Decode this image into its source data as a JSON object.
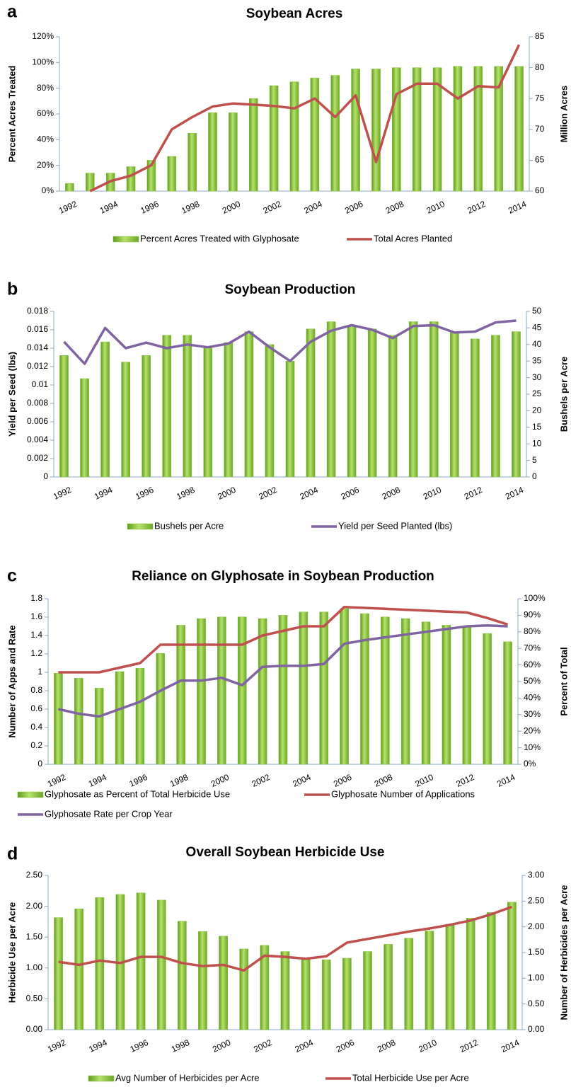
{
  "chart_data": [
    {
      "type": "combo",
      "label": "a",
      "title": "Soybean Acres",
      "ylabel": "Percent Acres Treated",
      "y2label": "Million Acres",
      "categories": [
        "1992",
        null,
        "1994",
        null,
        "1996",
        null,
        "1998",
        null,
        "2000",
        null,
        "2002",
        null,
        "2004",
        null,
        "2006",
        null,
        "2008",
        null,
        "2010",
        null,
        "2012",
        null,
        "2014"
      ],
      "ylim": [
        0,
        120
      ],
      "yticks": [
        {
          "value": 0,
          "label": "0%"
        },
        {
          "value": 20,
          "label": "20%"
        },
        {
          "value": 40,
          "label": "40%"
        },
        {
          "value": 60,
          "label": "60%"
        },
        {
          "value": 80,
          "label": "80%"
        },
        {
          "value": 100,
          "label": "100%"
        },
        {
          "value": 120,
          "label": "120%"
        }
      ],
      "y2lim": [
        60,
        85
      ],
      "y2ticks": [
        60,
        65,
        70,
        75,
        80,
        85
      ],
      "series": [
        {
          "name": "Percent Acres Treated with Glyphosate",
          "type": "bar",
          "color": "#8dc63f",
          "values": [
            6,
            14,
            14,
            19,
            24,
            27,
            45,
            61,
            61,
            72,
            82,
            85,
            88,
            90,
            95,
            95,
            96,
            96,
            96,
            97,
            97,
            97,
            97
          ]
        },
        {
          "name": "Total Acres Planted",
          "type": "line",
          "axis": "y2",
          "color": "#c0504d",
          "values": [
            null,
            60,
            61.6,
            62.5,
            64.2,
            70,
            72,
            73.7,
            74.2,
            74,
            73.8,
            73.4,
            75,
            72,
            75.5,
            64.7,
            75.7,
            77.4,
            77.4,
            75,
            77,
            76.8,
            83.7
          ]
        }
      ]
    },
    {
      "type": "combo",
      "label": "b",
      "title": "Soybean Production",
      "ylabel": "Yield per Seed (lbs)",
      "y2label": "Bushels per Acre",
      "categories": [
        "1992",
        null,
        "1994",
        null,
        "1996",
        null,
        "1998",
        null,
        "2000",
        null,
        "2002",
        null,
        "2004",
        null,
        "2006",
        null,
        "2008",
        null,
        "2010",
        null,
        "2012",
        null,
        "2014"
      ],
      "ylim": [
        0,
        0.018
      ],
      "yticks": [
        0,
        0.002,
        0.004,
        0.006,
        0.008,
        0.01,
        0.012,
        0.014,
        0.016,
        0.018
      ],
      "y2lim": [
        0,
        50
      ],
      "y2ticks": [
        0,
        5,
        10,
        15,
        20,
        25,
        30,
        35,
        40,
        45,
        50
      ],
      "series": [
        {
          "name": "Bushels per Acre",
          "type": "bar",
          "axis": "y2",
          "color": "#8dc63f",
          "values": [
            36.7,
            29.7,
            40.8,
            34.7,
            36.7,
            42.8,
            42.8,
            39.4,
            40.6,
            43.9,
            40,
            35,
            44.7,
            46.9,
            45.8,
            44.7,
            42.8,
            46.9,
            46.9,
            43.6,
            41.7,
            42.8,
            43.9
          ]
        },
        {
          "name": "Yield per Seed Planted (lbs)",
          "type": "line",
          "color": "#8064a2",
          "values": [
            0.0147,
            0.0123,
            0.0162,
            0.014,
            0.0146,
            0.014,
            0.0144,
            0.0141,
            0.0145,
            0.0158,
            0.0141,
            0.0126,
            0.0147,
            0.0159,
            0.0165,
            0.016,
            0.0151,
            0.0164,
            0.0165,
            0.0157,
            0.0158,
            0.0168,
            0.017
          ]
        }
      ]
    },
    {
      "type": "combo",
      "label": "c",
      "title": "Reliance on Glyphosate in Soybean Production",
      "ylabel": "Number of Apps and Rate",
      "y2label": "Percent  of Total",
      "categories": [
        "1992",
        null,
        "1994",
        null,
        "1996",
        null,
        "1998",
        null,
        "2000",
        null,
        "2002",
        null,
        "2004",
        null,
        "2006",
        null,
        "2008",
        null,
        "2010",
        null,
        "2012",
        null,
        "2014"
      ],
      "ylim": [
        0,
        1.8
      ],
      "yticks": [
        0,
        0.2,
        0.4,
        0.6,
        0.8,
        1,
        1.2,
        1.4,
        1.6,
        1.8
      ],
      "y2lim": [
        0,
        100
      ],
      "y2ticks": [
        {
          "value": 0,
          "label": "0%"
        },
        {
          "value": 10,
          "label": "10%"
        },
        {
          "value": 20,
          "label": "20%"
        },
        {
          "value": 30,
          "label": "30%"
        },
        {
          "value": 40,
          "label": "40%"
        },
        {
          "value": 50,
          "label": "50%"
        },
        {
          "value": 60,
          "label": "60%"
        },
        {
          "value": 70,
          "label": "70%"
        },
        {
          "value": 80,
          "label": "80%"
        },
        {
          "value": 90,
          "label": "90%"
        },
        {
          "value": 100,
          "label": "100%"
        }
      ],
      "series": [
        {
          "name": "Glyphosate as Percent of Total Herbicide Use",
          "type": "bar",
          "axis": "y2",
          "color": "#8dc63f",
          "values": [
            55,
            52,
            46,
            56,
            58,
            67,
            84,
            88,
            89,
            89,
            88,
            90,
            92,
            92,
            94,
            91,
            89,
            88,
            86,
            84,
            83,
            79,
            74
          ]
        },
        {
          "name": "Glyphosate Number of Applications",
          "type": "line",
          "color": "#c0504d",
          "values": [
            1.0,
            1.0,
            1.0,
            1.05,
            1.1,
            1.3,
            1.3,
            1.3,
            1.3,
            1.3,
            1.4,
            1.45,
            1.5,
            1.5,
            1.71,
            1.7,
            1.69,
            1.68,
            1.67,
            1.66,
            1.65,
            1.59,
            1.52
          ]
        },
        {
          "name": "Glyphosate Rate per Crop Year",
          "type": "line",
          "color": "#8064a2",
          "values": [
            0.6,
            0.55,
            0.52,
            0.6,
            0.68,
            0.8,
            0.91,
            0.91,
            0.94,
            0.86,
            1.06,
            1.07,
            1.07,
            1.09,
            1.31,
            1.35,
            1.38,
            1.41,
            1.44,
            1.47,
            1.5,
            1.51,
            1.5
          ]
        }
      ]
    },
    {
      "type": "combo",
      "label": "d",
      "title": "Overall Soybean Herbicide Use",
      "ylabel": "Herbicide Use per Acre",
      "y2label": "Number of Herbicides per Acre",
      "categories": [
        "1992",
        null,
        "1994",
        null,
        "1996",
        null,
        "1998",
        null,
        "2000",
        null,
        "2002",
        null,
        "2004",
        null,
        "2006",
        null,
        "2008",
        null,
        "2010",
        null,
        "2012",
        null,
        "2014"
      ],
      "ylim": [
        0,
        2.5
      ],
      "yticks": [
        {
          "value": 0,
          "label": "0.00"
        },
        {
          "value": 0.5,
          "label": "0.50"
        },
        {
          "value": 1,
          "label": "1.00"
        },
        {
          "value": 1.5,
          "label": "1.50"
        },
        {
          "value": 2,
          "label": "2.00"
        },
        {
          "value": 2.5,
          "label": "2.50"
        }
      ],
      "y2lim": [
        0,
        3
      ],
      "y2ticks": [
        {
          "value": 0,
          "label": "0.00"
        },
        {
          "value": 0.5,
          "label": "0.50"
        },
        {
          "value": 1,
          "label": "1.00"
        },
        {
          "value": 1.5,
          "label": "1.50"
        },
        {
          "value": 2,
          "label": "2.00"
        },
        {
          "value": 2.5,
          "label": "2.50"
        },
        {
          "value": 3,
          "label": "3.00"
        }
      ],
      "series": [
        {
          "name": "Avg Number of Herbicides per Acre",
          "type": "bar",
          "axis": "y2",
          "color": "#8dc63f",
          "values": [
            2.18,
            2.35,
            2.57,
            2.63,
            2.66,
            2.52,
            2.11,
            1.91,
            1.82,
            1.57,
            1.64,
            1.52,
            1.4,
            1.36,
            1.39,
            1.52,
            1.66,
            1.78,
            1.92,
            2.05,
            2.17,
            2.28,
            2.48
          ]
        },
        {
          "name": "Total Herbicide Use per Acre",
          "type": "line",
          "color": "#c0504d",
          "values": [
            1.1,
            1.05,
            1.12,
            1.08,
            1.18,
            1.18,
            1.08,
            1.03,
            1.05,
            0.96,
            1.2,
            1.18,
            1.15,
            1.19,
            1.41,
            1.47,
            1.53,
            1.59,
            1.64,
            1.7,
            1.77,
            1.87,
            1.99
          ]
        }
      ]
    }
  ]
}
